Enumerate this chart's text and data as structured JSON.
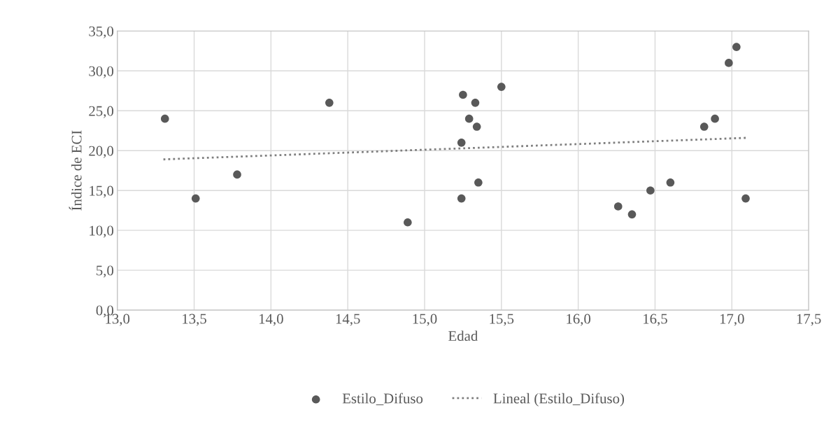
{
  "chart_data": {
    "type": "scatter",
    "xlabel": "Edad",
    "ylabel": "Índice de ECI",
    "xlim": [
      13.0,
      17.5
    ],
    "xticks": [
      {
        "value": 13.0,
        "label": "13,0"
      },
      {
        "value": 13.5,
        "label": "13,5"
      },
      {
        "value": 14.0,
        "label": "14,0"
      },
      {
        "value": 14.5,
        "label": "14,5"
      },
      {
        "value": 15.0,
        "label": "15,0"
      },
      {
        "value": 15.5,
        "label": "15,5"
      },
      {
        "value": 16.0,
        "label": "16,0"
      },
      {
        "value": 16.5,
        "label": "16,5"
      },
      {
        "value": 17.0,
        "label": "17,0"
      },
      {
        "value": 17.5,
        "label": "17,5"
      }
    ],
    "ylim": [
      0,
      35
    ],
    "yticks": [
      {
        "value": 0,
        "label": "0,0"
      },
      {
        "value": 5,
        "label": "5,0"
      },
      {
        "value": 10,
        "label": "10,0"
      },
      {
        "value": 15,
        "label": "15,0"
      },
      {
        "value": 20,
        "label": "20,0"
      },
      {
        "value": 25,
        "label": "25,0"
      },
      {
        "value": 30,
        "label": "30,0"
      },
      {
        "value": 35,
        "label": "35,0"
      }
    ],
    "grid": true,
    "legend": "bottom",
    "series": [
      {
        "name": "Estilo_Difuso",
        "color": "#595959",
        "marker": "circle",
        "x": [
          13.31,
          13.51,
          13.78,
          14.38,
          14.89,
          15.25,
          15.33,
          15.5,
          15.29,
          15.34,
          15.24,
          15.35,
          15.24,
          16.26,
          16.35,
          16.47,
          16.6,
          16.82,
          16.89,
          16.98,
          17.03,
          17.09
        ],
        "values": [
          24,
          14,
          17,
          26,
          11,
          27,
          26,
          28,
          24,
          23,
          21,
          16,
          14,
          13,
          12,
          15,
          16,
          23,
          24,
          31,
          33,
          14
        ]
      },
      {
        "name": "Lineal (Estilo_Difuso)",
        "type": "line",
        "color": "#7f7f7f",
        "line_style": "dotted",
        "marker": "none",
        "x": [
          13.3,
          17.09
        ],
        "values": [
          18.9,
          21.6
        ]
      }
    ]
  }
}
